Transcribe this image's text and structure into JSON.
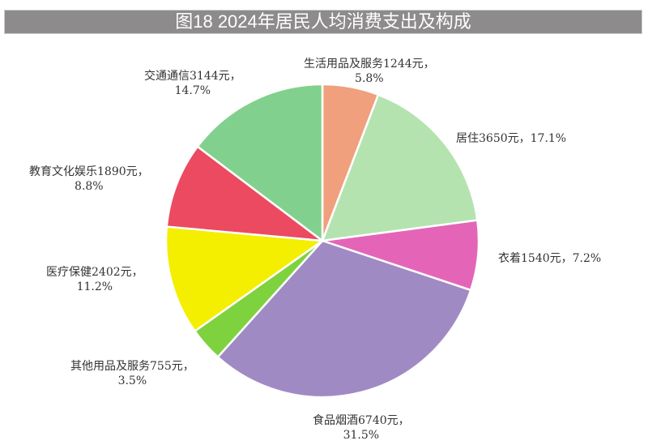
{
  "chart_data": {
    "type": "pie",
    "title": "图18  2024年居民人均消费支出及构成",
    "start": "top",
    "direction": "clockwise",
    "slices": [
      {
        "name": "生活用品及服务",
        "value": 1244,
        "unit": "元",
        "percent": "5.8%",
        "label": "生活用品及服务1244元，",
        "color": "#f0a07c"
      },
      {
        "name": "居住",
        "value": 3650,
        "unit": "元",
        "percent": "17.1%",
        "label": "居住3650元，17.1%",
        "color": "#b5e3b0"
      },
      {
        "name": "衣着",
        "value": 1540,
        "unit": "元",
        "percent": "7.2%",
        "label": "衣着1540元，7.2%",
        "color": "#e465b8"
      },
      {
        "name": "食品烟酒",
        "value": 6740,
        "unit": "元",
        "percent": "31.5%",
        "label": "食品烟酒6740元，",
        "color": "#a08ac4"
      },
      {
        "name": "其他用品及服务",
        "value": 755,
        "unit": "元",
        "percent": "3.5%",
        "label": "其他用品及服务755元，",
        "color": "#7ed23e"
      },
      {
        "name": "医疗保健",
        "value": 2402,
        "unit": "元",
        "percent": "11.2%",
        "label": "医疗保健2402元，",
        "color": "#f4ee00"
      },
      {
        "name": "教育文化娱乐",
        "value": 1890,
        "unit": "元",
        "percent": "8.8%",
        "label": "教育文化娱乐1890元，",
        "color": "#ec4a60"
      },
      {
        "name": "交通通信",
        "value": 3144,
        "unit": "元",
        "percent": "14.7%",
        "label": "交通通信3144元，",
        "color": "#82d08e"
      }
    ]
  }
}
